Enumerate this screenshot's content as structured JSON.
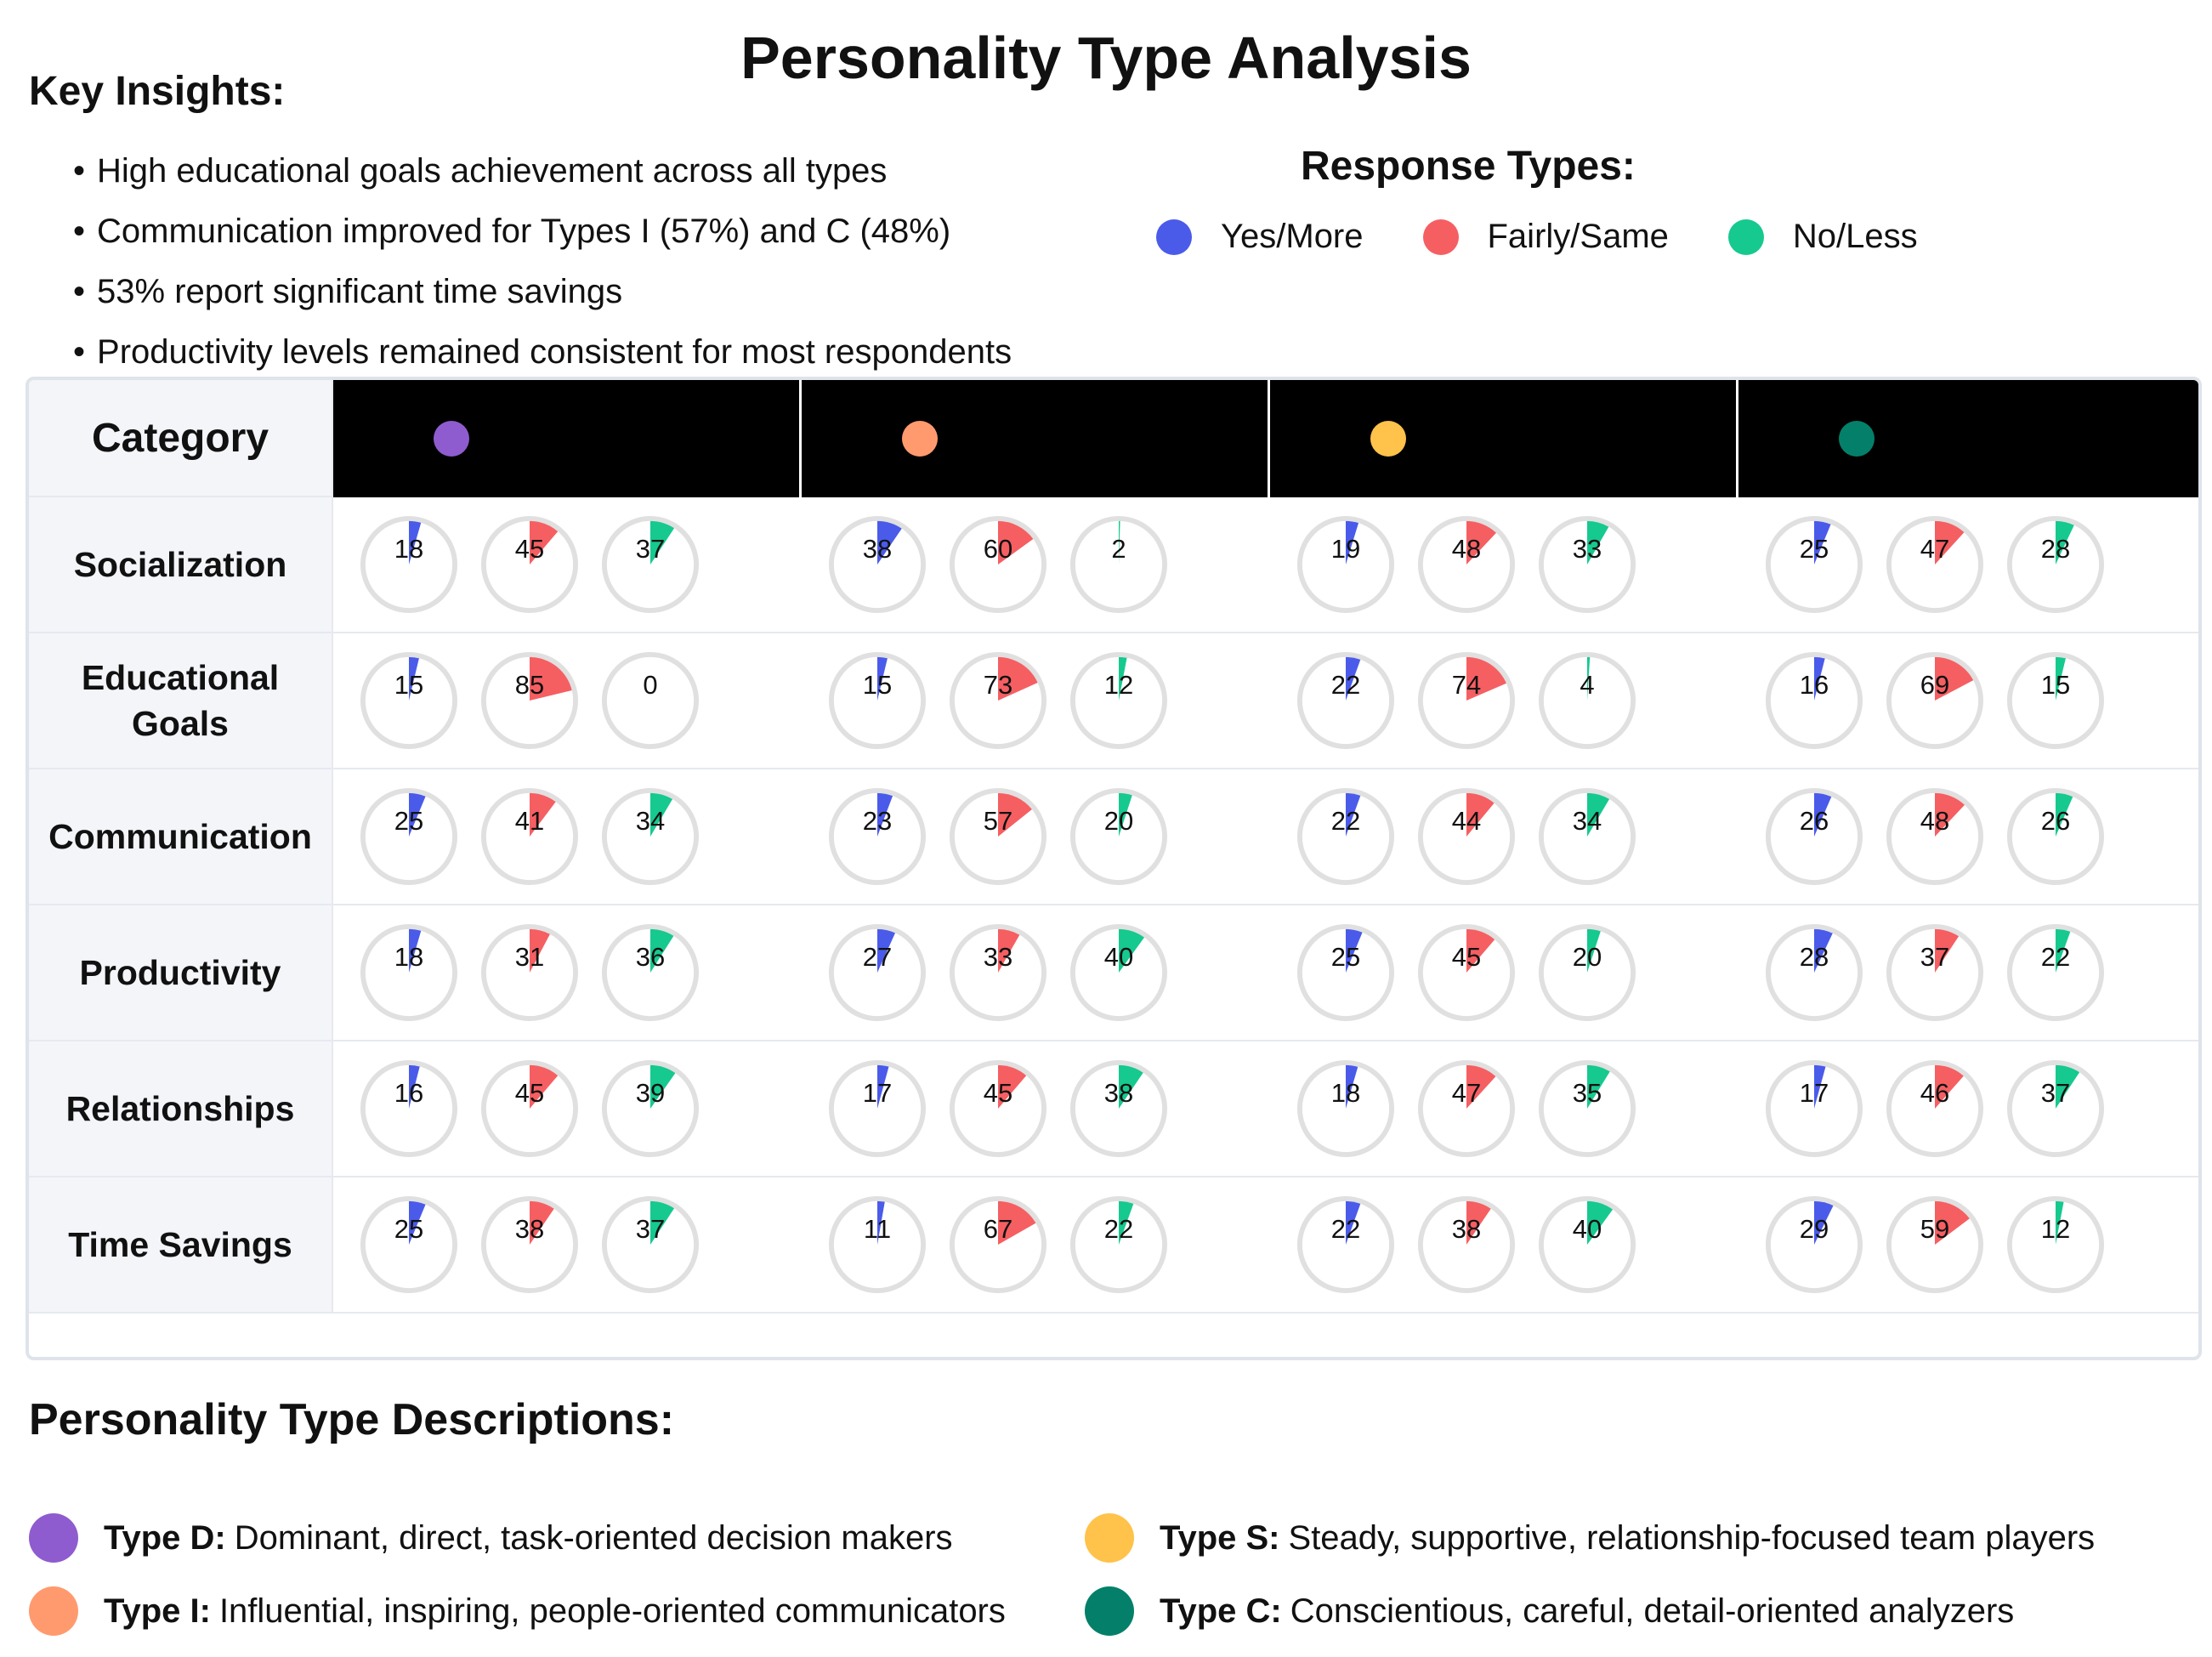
{
  "title": "Personality Type Analysis",
  "insights": {
    "heading": "Key Insights:",
    "items": [
      "High educational goals achievement across all types",
      "Communication improved for Types I (57%) and C (48%)",
      "53% report significant time savings",
      "Productivity levels remained consistent for most respondents"
    ]
  },
  "legend": {
    "title": "Response Types:",
    "items": [
      {
        "label": "Yes/More",
        "color": "#4a5bea"
      },
      {
        "label": "Fairly/Same",
        "color": "#f55f62"
      },
      {
        "label": "No/Less",
        "color": "#16c98f"
      }
    ]
  },
  "table": {
    "category_header": "Category",
    "type_colors": [
      "#8e5ccf",
      "#ff9a6f",
      "#ffc24a",
      "#04806a"
    ]
  },
  "chart_data": {
    "type": "table",
    "response_types": [
      "Yes/More",
      "Fairly/Same",
      "No/Less"
    ],
    "personality_types": [
      "D",
      "I",
      "S",
      "C"
    ],
    "rows": [
      {
        "category": "Socialization",
        "values": [
          [
            18,
            45,
            37
          ],
          [
            38,
            60,
            2
          ],
          [
            19,
            48,
            33
          ],
          [
            25,
            47,
            28
          ]
        ]
      },
      {
        "category": "Educational Goals",
        "values": [
          [
            15,
            85,
            0
          ],
          [
            15,
            73,
            12
          ],
          [
            22,
            74,
            4
          ],
          [
            16,
            69,
            15
          ]
        ]
      },
      {
        "category": "Communication",
        "values": [
          [
            25,
            41,
            34
          ],
          [
            23,
            57,
            20
          ],
          [
            22,
            44,
            34
          ],
          [
            26,
            48,
            26
          ]
        ]
      },
      {
        "category": "Productivity",
        "values": [
          [
            18,
            31,
            36
          ],
          [
            27,
            33,
            40
          ],
          [
            25,
            45,
            20
          ],
          [
            28,
            37,
            22
          ]
        ]
      },
      {
        "category": "Relationships",
        "values": [
          [
            16,
            45,
            39
          ],
          [
            17,
            45,
            38
          ],
          [
            18,
            47,
            35
          ],
          [
            17,
            46,
            37
          ]
        ]
      },
      {
        "category": "Time Savings",
        "values": [
          [
            25,
            38,
            37
          ],
          [
            11,
            67,
            22
          ],
          [
            22,
            38,
            40
          ],
          [
            29,
            59,
            12
          ]
        ]
      }
    ]
  },
  "descriptions": {
    "heading": "Personality Type Descriptions:",
    "items": [
      {
        "name": "Type D:",
        "text": "Dominant, direct, task-oriented decision makers",
        "color": "#8e5ccf"
      },
      {
        "name": "Type I:",
        "text": "Influential, inspiring, people-oriented communicators",
        "color": "#ff9a6f"
      },
      {
        "name": "Type S:",
        "text": "Steady, supportive, relationship-focused team players",
        "color": "#ffc24a"
      },
      {
        "name": "Type C:",
        "text": "Conscientious, careful, detail-oriented analyzers",
        "color": "#04806a"
      }
    ]
  }
}
